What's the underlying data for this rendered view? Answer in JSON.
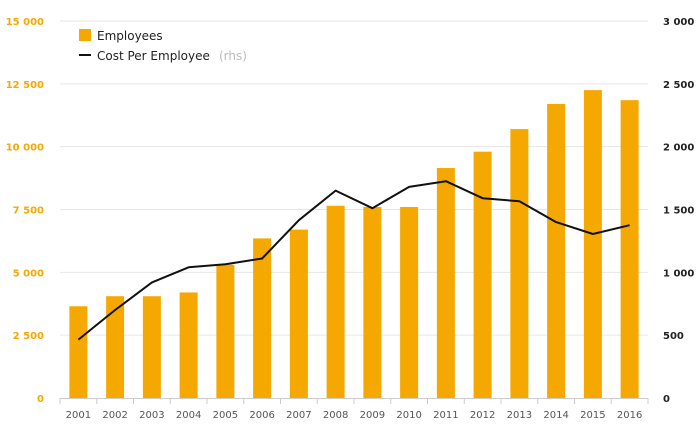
{
  "chart_data": {
    "type": "bar",
    "categories": [
      "2001",
      "2002",
      "2003",
      "2004",
      "2005",
      "2006",
      "2007",
      "2008",
      "2009",
      "2010",
      "2011",
      "2012",
      "2013",
      "2014",
      "2015",
      "2016"
    ],
    "series": [
      {
        "name": "Employees",
        "type": "bar",
        "axis": "left",
        "color": "#f5a800",
        "values": [
          3650,
          4050,
          4050,
          4200,
          5300,
          6350,
          6700,
          7650,
          7600,
          7600,
          9150,
          9800,
          10700,
          11700,
          12250,
          11850
        ]
      },
      {
        "name": "Cost Per Employee",
        "name_suffix": "(rhs)",
        "type": "line",
        "axis": "right",
        "color": "#111111",
        "values": [
          465,
          700,
          920,
          1040,
          1065,
          1110,
          1415,
          1650,
          1510,
          1680,
          1725,
          1590,
          1565,
          1400,
          1305,
          1375
        ]
      }
    ],
    "y_left": {
      "ticks": [
        "0",
        "2 500",
        "5 000",
        "7 500",
        "10 000",
        "12 500",
        "15 000"
      ],
      "range": [
        0,
        15000
      ],
      "color": "#f5a800"
    },
    "y_right": {
      "ticks": [
        "0",
        "500",
        "1 000",
        "1 500",
        "2 000",
        "2 500",
        "3 000"
      ],
      "range": [
        0,
        3000
      ],
      "color": "#222222"
    },
    "grid": true,
    "legend": "top-left"
  }
}
